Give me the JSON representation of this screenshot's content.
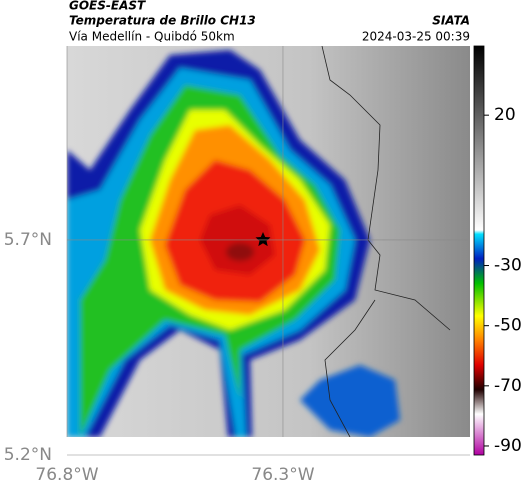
{
  "header": {
    "source": "GOES-EAST",
    "title": "Temperatura de Brillo CH13",
    "org": "SIATA",
    "subtitle": "Vía Medellín - Quibdó 50km",
    "datetime": "2024-03-25 00:39"
  },
  "map": {
    "xlim": [
      -76.8,
      -75.867
    ],
    "ylim": [
      5.2,
      6.151
    ],
    "xticks": [
      {
        "value": -76.8,
        "label": "76.8°W"
      },
      {
        "value": -76.3,
        "label": "76.3°W"
      }
    ],
    "yticks": [
      {
        "value": 5.2,
        "label": "5.2°N"
      },
      {
        "value": 5.7,
        "label": "5.7°N"
      }
    ],
    "grid": true
  },
  "colorbar": {
    "clim": [
      -93,
      43
    ],
    "ticks": [
      20,
      -30,
      -50,
      -70,
      -90
    ]
  }
}
